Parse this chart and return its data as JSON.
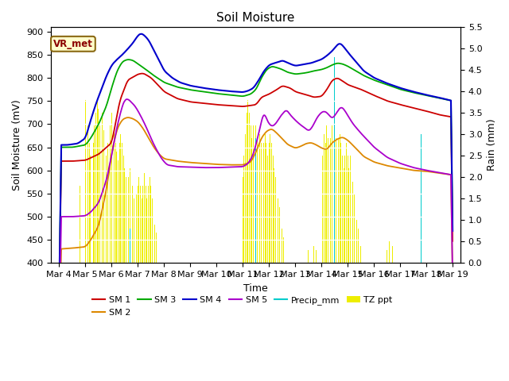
{
  "title": "Soil Moisture",
  "xlabel": "Time",
  "ylabel_left": "Soil Moisture (mV)",
  "ylabel_right": "Rain (mm)",
  "ylim_left": [
    400,
    910
  ],
  "ylim_right": [
    0.0,
    5.5
  ],
  "yticks_left": [
    400,
    450,
    500,
    550,
    600,
    650,
    700,
    750,
    800,
    850,
    900
  ],
  "yticks_right": [
    0.0,
    0.5,
    1.0,
    1.5,
    2.0,
    2.5,
    3.0,
    3.5,
    4.0,
    4.5,
    5.0,
    5.5
  ],
  "xtick_labels": [
    "Mar 4",
    "Mar 5",
    "Mar 6",
    "Mar 7",
    "Mar 8",
    "Mar 9",
    "Mar 10",
    "Mar 11",
    "Mar 12",
    "Mar 13",
    "Mar 14",
    "Mar 15",
    "Mar 16",
    "Mar 17",
    "Mar 18",
    "Mar 19"
  ],
  "colors": {
    "SM1": "#cc0000",
    "SM2": "#dd8800",
    "SM3": "#00aa00",
    "SM4": "#0000cc",
    "SM5": "#aa00cc",
    "Precip": "#00cccc",
    "TZ": "#eeee00",
    "background": "#e8e8e8"
  },
  "vr_met_label": "VR_met",
  "legend_entries": [
    "SM 1",
    "SM 2",
    "SM 3",
    "SM 4",
    "SM 5",
    "Precip_mm",
    "TZ ppt"
  ],
  "n_points": 720
}
